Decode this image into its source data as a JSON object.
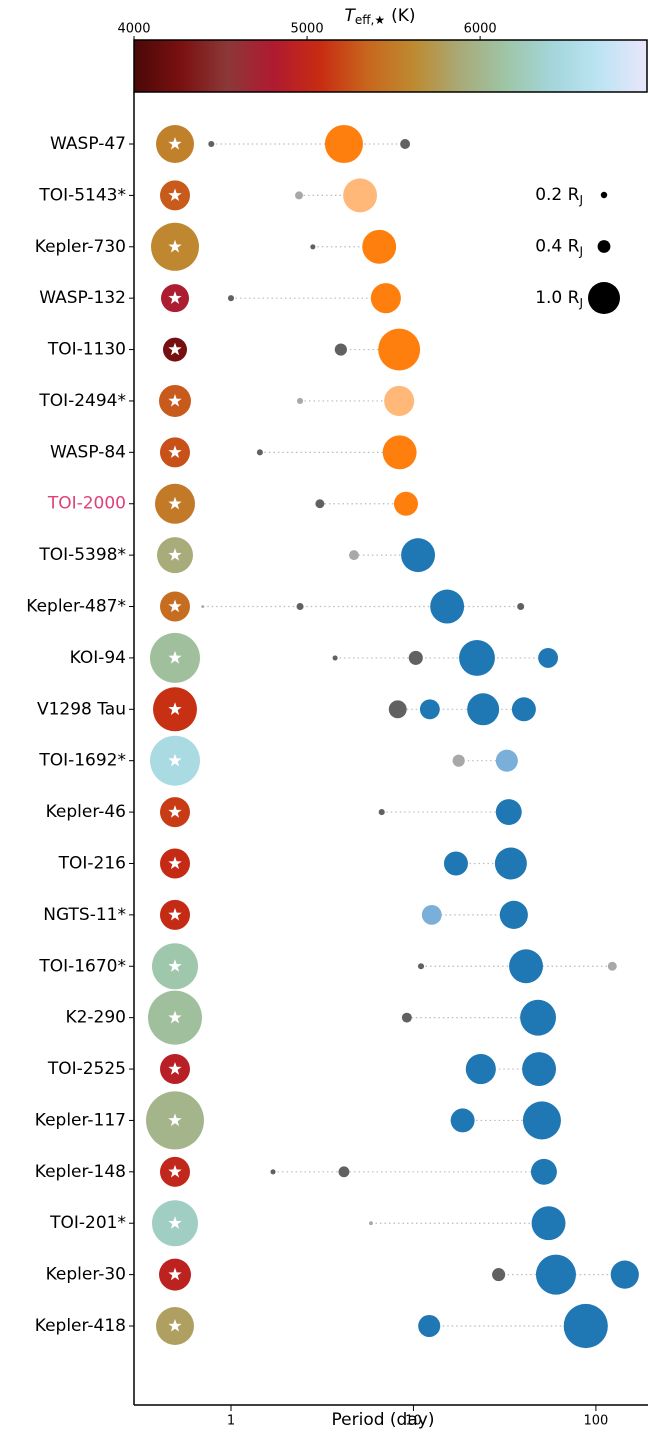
{
  "chart_data": {
    "type": "scatter",
    "xlabel": "Period (day)",
    "log_x": true,
    "xlim": [
      0.294,
      193
    ],
    "xticks": [
      1,
      10,
      100
    ],
    "colorbar": {
      "title": {
        "main": "T",
        "sub": "eff,★",
        "unit": "(K)"
      },
      "clim": [
        4000,
        6970
      ],
      "ticks": [
        4000,
        5000,
        6000
      ],
      "colormap": [
        "#4a0808",
        "#7a1010",
        "#8c3838",
        "#b01a30",
        "#c82c12",
        "#c8661e",
        "#be8a30",
        "#a8aa78",
        "#9ec6a8",
        "#a4d6dc",
        "#bde4f4",
        "#eae6fa"
      ]
    },
    "size_legend": {
      "corner": "upper right",
      "items": [
        {
          "value": 0.2,
          "label": "0.2 R",
          "sub": "J"
        },
        {
          "value": 0.4,
          "label": "0.4 R",
          "sub": "J"
        },
        {
          "value": 1.0,
          "label": "1.0 R",
          "sub": "J"
        }
      ]
    },
    "systems": [
      {
        "name": "WASP-47",
        "teff": 5550,
        "star_radius": 0.95,
        "planets": [
          {
            "period": 0.78,
            "radius": 0.19,
            "color": "#616161"
          },
          {
            "period": 4.16,
            "radius": 1.19,
            "color": "#ff7f0e"
          },
          {
            "period": 9.0,
            "radius": 0.31,
            "color": "#616161"
          }
        ]
      },
      {
        "name": "TOI-5143*",
        "teff": 5300,
        "star_radius": 0.75,
        "planets": [
          {
            "period": 2.36,
            "radius": 0.25,
            "color": "#a8a8a8"
          },
          {
            "period": 5.1,
            "radius": 1.06,
            "color": "#ffb877"
          }
        ]
      },
      {
        "name": "Kepler-730",
        "teff": 5600,
        "star_radius": 1.2,
        "planets": [
          {
            "period": 2.81,
            "radius": 0.16,
            "color": "#616161"
          },
          {
            "period": 6.49,
            "radius": 1.06,
            "color": "#ff7f0e"
          }
        ]
      },
      {
        "name": "WASP-132",
        "teff": 4780,
        "star_radius": 0.7,
        "planets": [
          {
            "period": 1.0,
            "radius": 0.19,
            "color": "#616161"
          },
          {
            "period": 7.06,
            "radius": 0.94,
            "color": "#ff7f0e"
          }
        ]
      },
      {
        "name": "TOI-1130",
        "teff": 4250,
        "star_radius": 0.6,
        "planets": [
          {
            "period": 4.0,
            "radius": 0.38,
            "color": "#616161"
          },
          {
            "period": 8.35,
            "radius": 1.31,
            "color": "#ff7f0e"
          }
        ]
      },
      {
        "name": "TOI-2494*",
        "teff": 5300,
        "star_radius": 0.8,
        "planets": [
          {
            "period": 2.39,
            "radius": 0.19,
            "color": "#a8a8a8"
          },
          {
            "period": 8.35,
            "radius": 0.94,
            "color": "#ffb877"
          }
        ]
      },
      {
        "name": "WASP-84",
        "teff": 5250,
        "star_radius": 0.75,
        "planets": [
          {
            "period": 1.44,
            "radius": 0.19,
            "color": "#616161"
          },
          {
            "period": 8.4,
            "radius": 1.06,
            "color": "#ff7f0e"
          }
        ]
      },
      {
        "name": "TOI-2000",
        "name_color": "#e0407a",
        "teff": 5500,
        "star_radius": 1.0,
        "planets": [
          {
            "period": 3.07,
            "radius": 0.28,
            "color": "#616161"
          },
          {
            "period": 9.1,
            "radius": 0.75,
            "color": "#ff7f0e"
          }
        ]
      },
      {
        "name": "TOI-5398*",
        "teff": 5900,
        "star_radius": 0.9,
        "planets": [
          {
            "period": 4.72,
            "radius": 0.31,
            "color": "#a8a8a8"
          },
          {
            "period": 10.6,
            "radius": 1.06,
            "color": "#1f77b4"
          }
        ]
      },
      {
        "name": "Kepler-487*",
        "teff": 5400,
        "star_radius": 0.75,
        "planets": [
          {
            "period": 0.7,
            "radius": 0.09,
            "color": "#a8a8a8"
          },
          {
            "period": 2.39,
            "radius": 0.22,
            "color": "#616161"
          },
          {
            "period": 15.3,
            "radius": 1.06,
            "color": "#1f77b4"
          },
          {
            "period": 38.7,
            "radius": 0.22,
            "color": "#616161"
          }
        ]
      },
      {
        "name": "KOI-94",
        "teff": 6100,
        "star_radius": 1.25,
        "planets": [
          {
            "period": 3.72,
            "radius": 0.16,
            "color": "#616161"
          },
          {
            "period": 10.3,
            "radius": 0.44,
            "color": "#616161"
          },
          {
            "period": 22.3,
            "radius": 1.12,
            "color": "#1f77b4"
          },
          {
            "period": 54.7,
            "radius": 0.62,
            "color": "#1f77b4"
          }
        ]
      },
      {
        "name": "V1298 Tau",
        "teff": 5100,
        "star_radius": 1.1,
        "planets": [
          {
            "period": 8.2,
            "radius": 0.56,
            "color": "#616161"
          },
          {
            "period": 12.3,
            "radius": 0.62,
            "color": "#1f77b4"
          },
          {
            "period": 24.1,
            "radius": 1.0,
            "color": "#1f77b4"
          },
          {
            "period": 40.3,
            "radius": 0.75,
            "color": "#1f77b4"
          }
        ]
      },
      {
        "name": "TOI-1692*",
        "teff": 6500,
        "star_radius": 1.25,
        "planets": [
          {
            "period": 17.7,
            "radius": 0.38,
            "color": "#a8a8a8"
          },
          {
            "period": 32.5,
            "radius": 0.69,
            "color": "#7aafd9"
          }
        ]
      },
      {
        "name": "Kepler-46",
        "teff": 5150,
        "star_radius": 0.75,
        "planets": [
          {
            "period": 6.7,
            "radius": 0.19,
            "color": "#616161"
          },
          {
            "period": 33.3,
            "radius": 0.81,
            "color": "#1f77b4"
          }
        ]
      },
      {
        "name": "TOI-216",
        "teff": 5050,
        "star_radius": 0.75,
        "planets": [
          {
            "period": 17.1,
            "radius": 0.75,
            "color": "#1f77b4"
          },
          {
            "period": 34.2,
            "radius": 1.0,
            "color": "#1f77b4"
          }
        ]
      },
      {
        "name": "NGTS-11*",
        "teff": 5050,
        "star_radius": 0.75,
        "planets": [
          {
            "period": 12.6,
            "radius": 0.62,
            "color": "#7aafd9"
          },
          {
            "period": 35.5,
            "radius": 0.88,
            "color": "#1f77b4"
          }
        ]
      },
      {
        "name": "TOI-1670*",
        "teff": 6180,
        "star_radius": 1.15,
        "planets": [
          {
            "period": 11.0,
            "radius": 0.19,
            "color": "#616161"
          },
          {
            "period": 41.4,
            "radius": 1.06,
            "color": "#1f77b4"
          },
          {
            "period": 123,
            "radius": 0.28,
            "color": "#a8a8a8"
          }
        ]
      },
      {
        "name": "K2-290",
        "teff": 6100,
        "star_radius": 1.35,
        "planets": [
          {
            "period": 9.2,
            "radius": 0.31,
            "color": "#616161"
          },
          {
            "period": 48.2,
            "radius": 1.12,
            "color": "#1f77b4"
          }
        ]
      },
      {
        "name": "TOI-2525",
        "teff": 4900,
        "star_radius": 0.75,
        "planets": [
          {
            "period": 23.4,
            "radius": 0.94,
            "color": "#1f77b4"
          },
          {
            "period": 48.8,
            "radius": 1.06,
            "color": "#1f77b4"
          }
        ]
      },
      {
        "name": "Kepler-117",
        "teff": 6000,
        "star_radius": 1.45,
        "planets": [
          {
            "period": 18.6,
            "radius": 0.75,
            "color": "#1f77b4"
          },
          {
            "period": 50.6,
            "radius": 1.19,
            "color": "#1f77b4"
          }
        ]
      },
      {
        "name": "Kepler-148",
        "teff": 5000,
        "star_radius": 0.75,
        "planets": [
          {
            "period": 1.7,
            "radius": 0.16,
            "color": "#616161"
          },
          {
            "period": 4.16,
            "radius": 0.34,
            "color": "#616161"
          },
          {
            "period": 51.9,
            "radius": 0.81,
            "color": "#1f77b4"
          }
        ]
      },
      {
        "name": "TOI-201*",
        "teff": 6300,
        "star_radius": 1.15,
        "planets": [
          {
            "period": 5.85,
            "radius": 0.12,
            "color": "#a8a8a8"
          },
          {
            "period": 55,
            "radius": 1.06,
            "color": "#1f77b4"
          }
        ]
      },
      {
        "name": "Kepler-30",
        "teff": 4950,
        "star_radius": 0.8,
        "planets": [
          {
            "period": 29.3,
            "radius": 0.41,
            "color": "#616161"
          },
          {
            "period": 60.4,
            "radius": 1.25,
            "color": "#1f77b4"
          },
          {
            "period": 144,
            "radius": 0.88,
            "color": "#1f77b4"
          }
        ]
      },
      {
        "name": "Kepler-418",
        "teff": 5800,
        "star_radius": 0.95,
        "planets": [
          {
            "period": 12.2,
            "radius": 0.69,
            "color": "#1f77b4"
          },
          {
            "period": 88,
            "radius": 1.38,
            "color": "#1f77b4"
          }
        ]
      }
    ]
  }
}
